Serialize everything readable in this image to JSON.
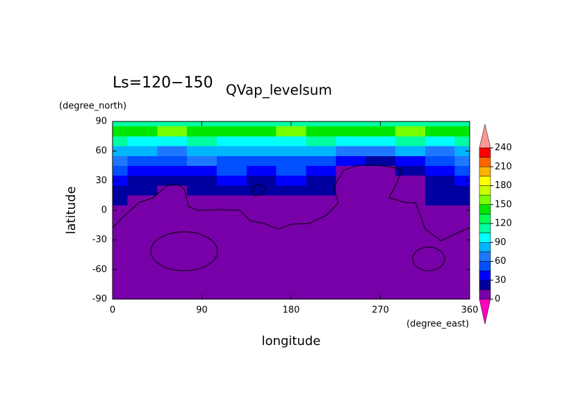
{
  "chart_data": {
    "type": "contour",
    "title": "Ls=120−150",
    "subtitle": "QVap_levelsum",
    "x_label": "longitude",
    "y_label": "latitude",
    "x_unit": "(degree_east)",
    "y_unit": "(degree_north)",
    "lon": [
      0,
      30,
      60,
      90,
      120,
      150,
      180,
      210,
      240,
      270,
      300,
      330,
      360
    ],
    "lat": [
      90,
      80,
      70,
      60,
      50,
      40,
      30,
      20,
      10,
      0,
      -10,
      -20,
      -30,
      -40,
      -50,
      -60,
      -70,
      -80,
      -90
    ],
    "z": [
      [
        112,
        112,
        112,
        112,
        112,
        112,
        112,
        112,
        112,
        112,
        112,
        112,
        112
      ],
      [
        140,
        145,
        150,
        140,
        135,
        140,
        150,
        145,
        135,
        140,
        150,
        145,
        140
      ],
      [
        105,
        100,
        95,
        105,
        100,
        95,
        100,
        110,
        95,
        100,
        105,
        100,
        105
      ],
      [
        80,
        75,
        70,
        85,
        75,
        80,
        78,
        80,
        70,
        65,
        75,
        70,
        80
      ],
      [
        60,
        55,
        50,
        60,
        55,
        50,
        55,
        55,
        30,
        20,
        35,
        50,
        60
      ],
      [
        45,
        40,
        35,
        40,
        45,
        40,
        45,
        30,
        8,
        8,
        20,
        35,
        45
      ],
      [
        30,
        28,
        25,
        28,
        35,
        20,
        30,
        20,
        5,
        5,
        10,
        20,
        30
      ],
      [
        20,
        20,
        10,
        20,
        20,
        15,
        20,
        15,
        5,
        5,
        8,
        18,
        20
      ],
      [
        16,
        12,
        6,
        8,
        8,
        8,
        8,
        8,
        5,
        5,
        5,
        16,
        16
      ],
      [
        5,
        5,
        5,
        5,
        5,
        5,
        5,
        5,
        5,
        5,
        5,
        5,
        5
      ],
      [
        5,
        5,
        5,
        5,
        5,
        5,
        5,
        5,
        5,
        5,
        5,
        5,
        5
      ],
      [
        5,
        5,
        5,
        5,
        5,
        5,
        5,
        5,
        5,
        5,
        5,
        5,
        5
      ],
      [
        5,
        5,
        5,
        5,
        5,
        5,
        5,
        5,
        5,
        5,
        5,
        5,
        5
      ],
      [
        5,
        5,
        5,
        5,
        5,
        5,
        5,
        5,
        5,
        5,
        5,
        5,
        5
      ],
      [
        5,
        5,
        5,
        5,
        5,
        5,
        5,
        5,
        5,
        5,
        5,
        5,
        5
      ],
      [
        5,
        5,
        5,
        5,
        5,
        5,
        5,
        5,
        5,
        5,
        5,
        5,
        5
      ],
      [
        5,
        5,
        5,
        5,
        5,
        5,
        5,
        5,
        5,
        5,
        5,
        5,
        5
      ],
      [
        5,
        5,
        5,
        5,
        5,
        5,
        5,
        5,
        5,
        5,
        5,
        5,
        5
      ],
      [
        5,
        5,
        5,
        5,
        5,
        5,
        5,
        5,
        5,
        5,
        5,
        5,
        5
      ]
    ],
    "xlim": [
      0,
      360
    ],
    "xticks": [
      0,
      90,
      180,
      270,
      360
    ],
    "ylim": [
      -90,
      90
    ],
    "yticks": [
      -90,
      -60,
      -30,
      0,
      30,
      60,
      90
    ],
    "levels": [
      0,
      15,
      30,
      45,
      60,
      75,
      90,
      105,
      120,
      135,
      150,
      165,
      180,
      195,
      210,
      225,
      240
    ],
    "colors": [
      "#7800a8",
      "#0000a0",
      "#0000ff",
      "#0050ff",
      "#1e78ff",
      "#00b4ff",
      "#00ffff",
      "#00ffa0",
      "#00ff50",
      "#00e600",
      "#78ff00",
      "#c8ff00",
      "#ffff00",
      "#ffb400",
      "#ff6400",
      "#ff0000"
    ],
    "over_color": "#ff9696",
    "under_color": "#ff00c0",
    "colorbar_ticks": [
      0,
      30,
      60,
      90,
      120,
      150,
      180,
      210,
      240
    ]
  }
}
